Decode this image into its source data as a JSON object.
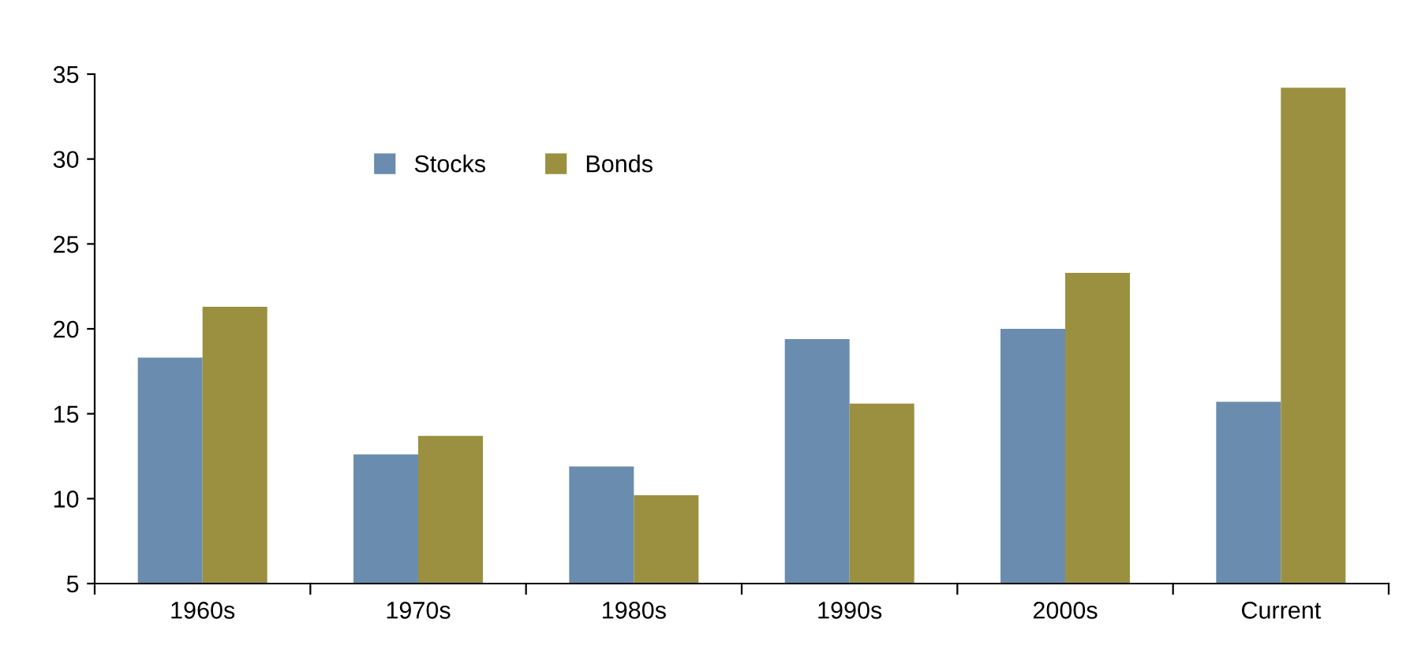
{
  "chart_data": {
    "type": "bar",
    "categories": [
      "1960s",
      "1970s",
      "1980s",
      "1990s",
      "2000s",
      "Current"
    ],
    "series": [
      {
        "name": "Stocks",
        "color": "#6a8caf",
        "values": [
          18.3,
          12.6,
          11.9,
          19.4,
          20.0,
          15.7
        ]
      },
      {
        "name": "Bonds",
        "color": "#9a9040",
        "values": [
          21.3,
          13.7,
          10.2,
          15.6,
          23.3,
          34.2
        ]
      }
    ],
    "ylim": [
      5,
      35
    ],
    "yticks": [
      5,
      10,
      15,
      20,
      25,
      30,
      35
    ],
    "grid": false,
    "legend": "top left"
  }
}
